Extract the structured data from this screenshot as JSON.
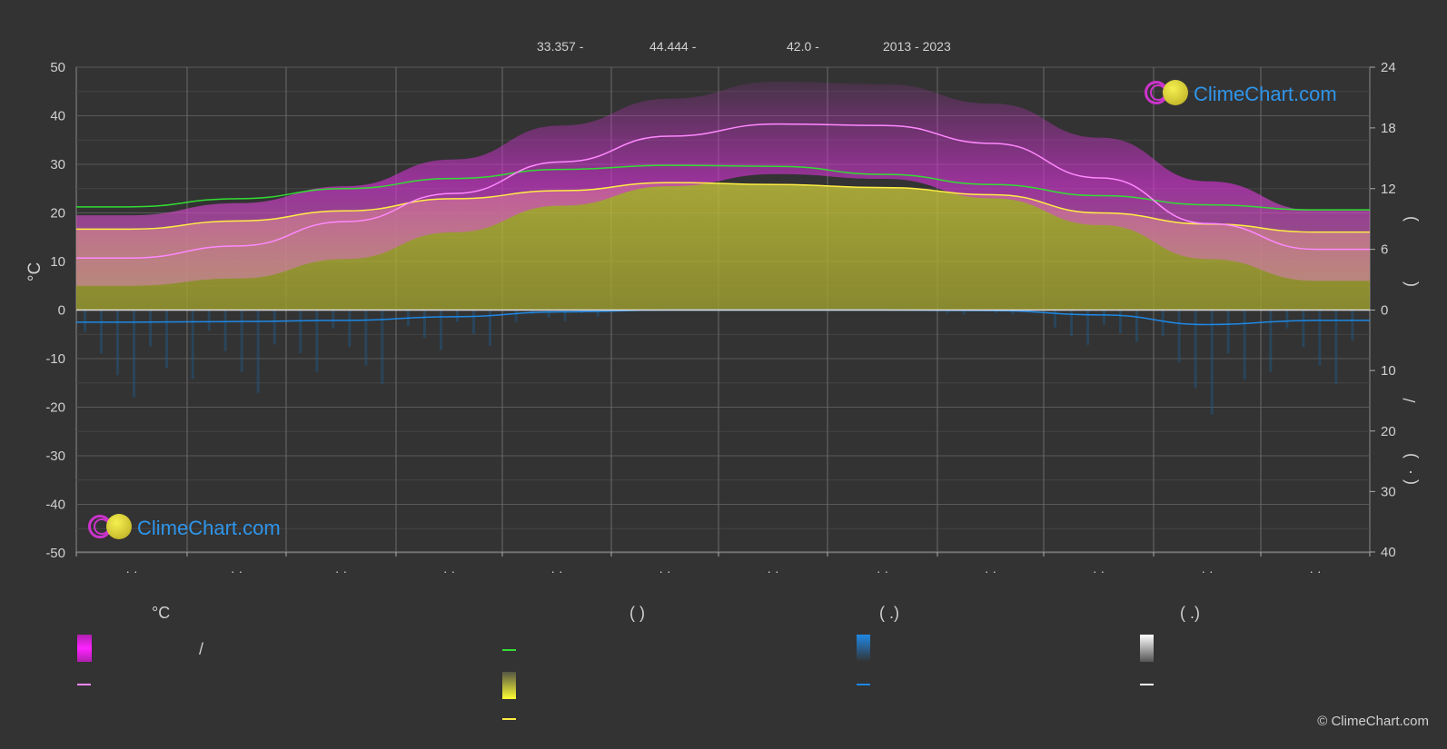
{
  "header": {
    "latitude": "33.357 -",
    "longitude": "44.444 -",
    "elevation": "42.0 -",
    "years": "2013 - 2023"
  },
  "brand": {
    "name": "ClimeChart.com",
    "copyright": "© ClimeChart.com"
  },
  "legend": {
    "col1_head": "°C",
    "col1_row1": "/",
    "col2_head": "(            )",
    "col3_head": "(    .)",
    "col4_head": "(    .)"
  },
  "colors": {
    "background": "#333333",
    "temp_band": "#cc33cc",
    "temp_mean": "#ff88ff",
    "daylight": "#33dd33",
    "sunshine": "#ffee44",
    "sunshine_fill": "#b5b533",
    "rain": "#1e88e5",
    "snow": "#ffffff"
  },
  "chart_data": {
    "type": "line",
    "x_ticks": [
      "· ·",
      "· ·",
      "· ·",
      "· ·",
      "· ·",
      "· ·",
      "· ·",
      "· ·",
      "· ·",
      "· ·",
      "· ·",
      "· ·"
    ],
    "left_axis": {
      "label": "°C",
      "ylim": [
        -50,
        50
      ],
      "ticks": [
        50,
        40,
        30,
        20,
        10,
        0,
        -10,
        -20,
        -30,
        -40,
        -50
      ]
    },
    "right_axis_top": {
      "ylim": [
        0,
        24
      ],
      "ticks": [
        24,
        18,
        12,
        6,
        0
      ],
      "label_marks": [
        "(",
        ")"
      ]
    },
    "right_axis_bottom": {
      "ylim": [
        0,
        40
      ],
      "ticks": [
        0,
        10,
        20,
        30,
        40
      ],
      "label_marks": [
        "/",
        "(",
        "·",
        ")"
      ]
    },
    "grid": true,
    "series": [
      {
        "key": "temp_max",
        "axis": "temp",
        "values": [
          19.5,
          22,
          25.5,
          31,
          38,
          43.5,
          47,
          46.5,
          42.5,
          35.5,
          26.5,
          20.5
        ]
      },
      {
        "key": "temp_min",
        "axis": "temp",
        "values": [
          5,
          6.5,
          10.5,
          16,
          21.5,
          25.5,
          28,
          27,
          23,
          17.5,
          10.5,
          6
        ]
      },
      {
        "key": "temp_mean",
        "axis": "temp",
        "values": [
          10.7,
          13.2,
          18.2,
          24.0,
          30.5,
          35.8,
          38.3,
          38.0,
          34.3,
          27.2,
          17.8,
          12.5
        ]
      },
      {
        "key": "daylight",
        "axis": "hours",
        "values": [
          10.2,
          11.0,
          12.0,
          13.0,
          13.9,
          14.3,
          14.2,
          13.4,
          12.4,
          11.3,
          10.4,
          9.9
        ]
      },
      {
        "key": "sunshine",
        "axis": "hours",
        "values": [
          8.0,
          8.8,
          9.8,
          11.0,
          11.8,
          12.6,
          12.4,
          12.1,
          11.4,
          9.6,
          8.5,
          7.7
        ]
      },
      {
        "key": "rain_daily",
        "axis": "mm",
        "values": [
          2.0,
          1.9,
          1.7,
          1.1,
          0.3,
          0.0,
          0.0,
          0.0,
          0.1,
          0.8,
          2.4,
          1.7
        ]
      }
    ]
  }
}
